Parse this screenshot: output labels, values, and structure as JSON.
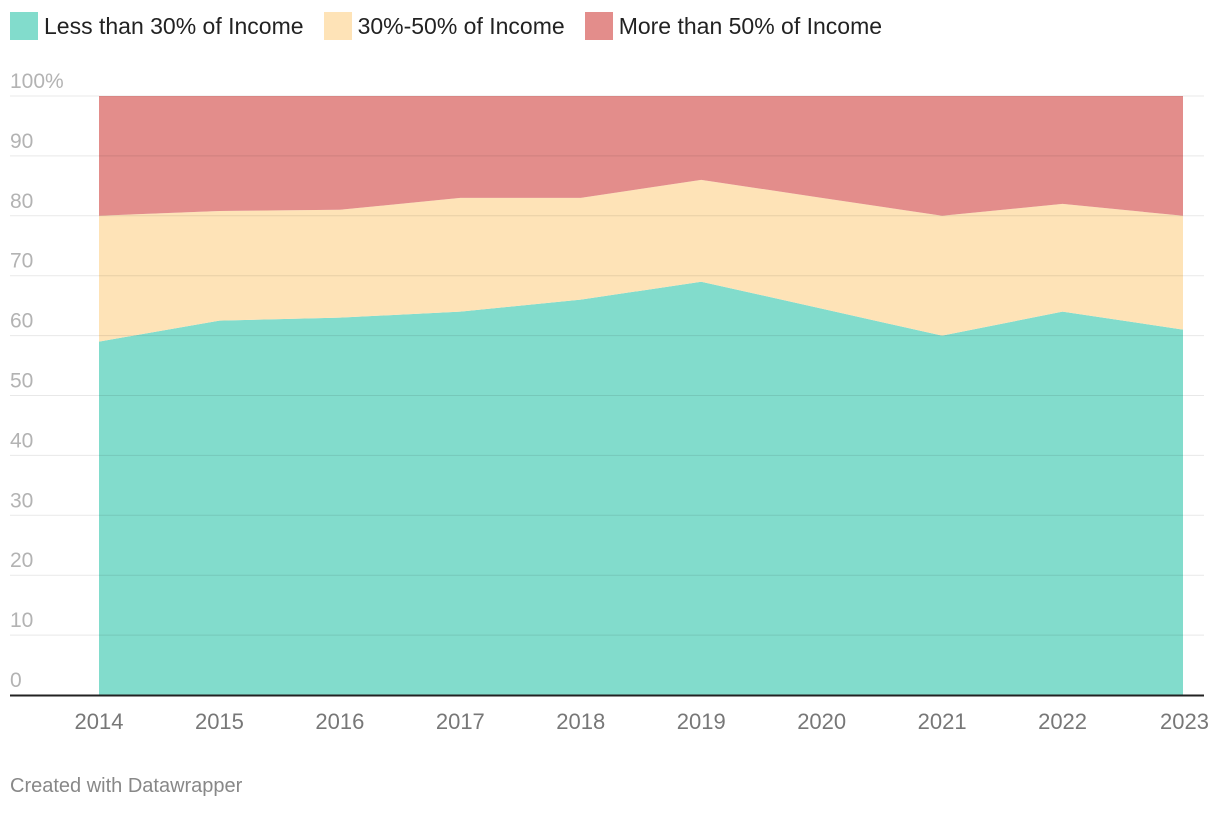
{
  "chart_data": {
    "type": "area",
    "stacked": true,
    "title": "",
    "xlabel": "",
    "ylabel": "",
    "x": [
      "2014",
      "2015",
      "2016",
      "2017",
      "2018",
      "2019",
      "2020",
      "2021",
      "2022",
      "2023"
    ],
    "ylim": [
      0,
      100
    ],
    "yticks": [
      {
        "value": 0,
        "label": "0"
      },
      {
        "value": 10,
        "label": "10"
      },
      {
        "value": 20,
        "label": "20"
      },
      {
        "value": 30,
        "label": "30"
      },
      {
        "value": 40,
        "label": "40"
      },
      {
        "value": 50,
        "label": "50"
      },
      {
        "value": 60,
        "label": "60"
      },
      {
        "value": 70,
        "label": "70"
      },
      {
        "value": 80,
        "label": "80"
      },
      {
        "value": 90,
        "label": "90"
      },
      {
        "value": 100,
        "label": "100%"
      }
    ],
    "grid": true,
    "legend_position": "top-left",
    "series": [
      {
        "name": "Less than 30% of Income",
        "color": "#82dccc",
        "values": [
          59,
          62.5,
          63,
          64,
          66,
          69,
          64.5,
          60,
          64,
          61
        ]
      },
      {
        "name": "30%-50% of Income",
        "color": "#fee3b7",
        "values": [
          21,
          18.3,
          18,
          19,
          17,
          17,
          18.5,
          20,
          18,
          19
        ]
      },
      {
        "name": "More than 50% of Income",
        "color": "#e38d8b",
        "values": [
          20,
          19.2,
          19,
          17,
          17,
          14,
          17,
          20,
          18,
          20
        ]
      }
    ]
  },
  "footer": {
    "credit": "Created with Datawrapper"
  }
}
